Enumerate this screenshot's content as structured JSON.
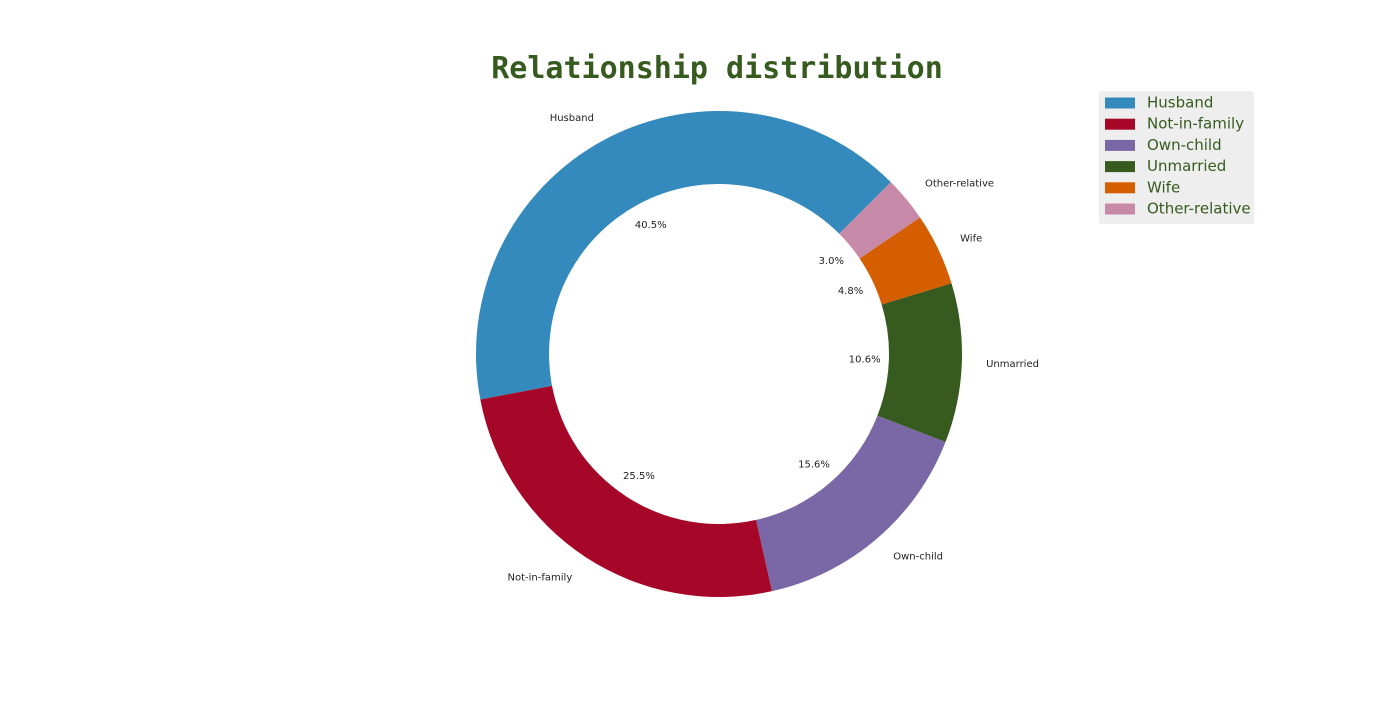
{
  "chart_data": {
    "type": "pie",
    "style": "donut",
    "title": "Relationship distribution",
    "categories": [
      "Husband",
      "Not-in-family",
      "Own-child",
      "Unmarried",
      "Wife",
      "Other-relative"
    ],
    "values": [
      40.5,
      25.5,
      15.6,
      10.6,
      4.8,
      3.0
    ],
    "value_labels": [
      "40.5%",
      "25.5%",
      "15.6%",
      "10.6%",
      "4.8%",
      "3.0%"
    ],
    "colors": [
      "#348abd",
      "#a60628",
      "#7a68a6",
      "#375a1f",
      "#d55e00",
      "#c68aa8"
    ],
    "title_color": "#375a1f",
    "legend_text_color": "#375a1f",
    "legend_background": "#eeeeee",
    "start_angle_deg": 45,
    "direction": "counterclockwise",
    "legend": {
      "placement": "top-right",
      "entries": [
        "Husband",
        "Not-in-family",
        "Own-child",
        "Unmarried",
        "Wife",
        "Other-relative"
      ]
    }
  }
}
